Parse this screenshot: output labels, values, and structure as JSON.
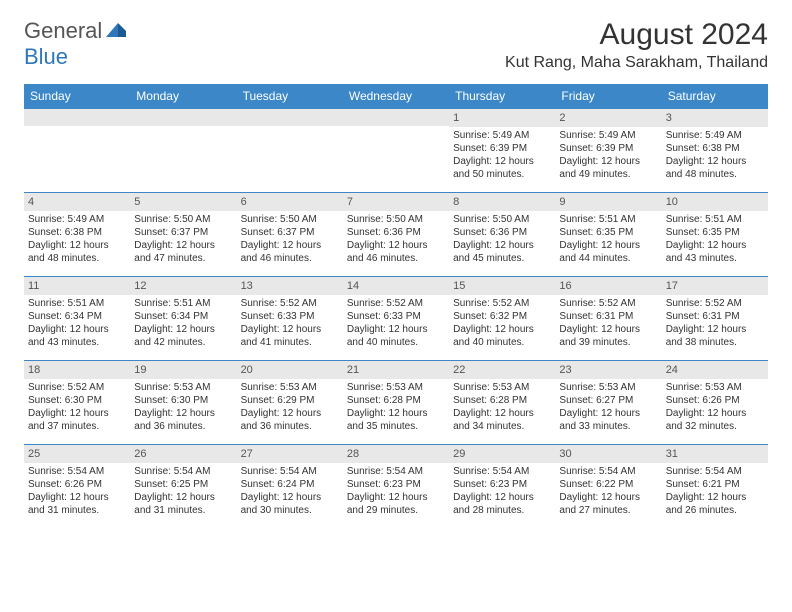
{
  "logo": {
    "part1": "General",
    "part2": "Blue"
  },
  "title": "August 2024",
  "location": "Kut Rang, Maha Sarakham, Thailand",
  "colors": {
    "header_bg": "#3b87c8",
    "header_text": "#ffffff",
    "daybar_bg": "#e8e8e8",
    "border": "#3b87c8",
    "logo_gray": "#555555",
    "logo_blue": "#2f77bb"
  },
  "weekdays": [
    "Sunday",
    "Monday",
    "Tuesday",
    "Wednesday",
    "Thursday",
    "Friday",
    "Saturday"
  ],
  "weeks": [
    [
      null,
      null,
      null,
      null,
      {
        "n": "1",
        "sunrise": "5:49 AM",
        "sunset": "6:39 PM",
        "dl1": "Daylight: 12 hours",
        "dl2": "and 50 minutes."
      },
      {
        "n": "2",
        "sunrise": "5:49 AM",
        "sunset": "6:39 PM",
        "dl1": "Daylight: 12 hours",
        "dl2": "and 49 minutes."
      },
      {
        "n": "3",
        "sunrise": "5:49 AM",
        "sunset": "6:38 PM",
        "dl1": "Daylight: 12 hours",
        "dl2": "and 48 minutes."
      }
    ],
    [
      {
        "n": "4",
        "sunrise": "5:49 AM",
        "sunset": "6:38 PM",
        "dl1": "Daylight: 12 hours",
        "dl2": "and 48 minutes."
      },
      {
        "n": "5",
        "sunrise": "5:50 AM",
        "sunset": "6:37 PM",
        "dl1": "Daylight: 12 hours",
        "dl2": "and 47 minutes."
      },
      {
        "n": "6",
        "sunrise": "5:50 AM",
        "sunset": "6:37 PM",
        "dl1": "Daylight: 12 hours",
        "dl2": "and 46 minutes."
      },
      {
        "n": "7",
        "sunrise": "5:50 AM",
        "sunset": "6:36 PM",
        "dl1": "Daylight: 12 hours",
        "dl2": "and 46 minutes."
      },
      {
        "n": "8",
        "sunrise": "5:50 AM",
        "sunset": "6:36 PM",
        "dl1": "Daylight: 12 hours",
        "dl2": "and 45 minutes."
      },
      {
        "n": "9",
        "sunrise": "5:51 AM",
        "sunset": "6:35 PM",
        "dl1": "Daylight: 12 hours",
        "dl2": "and 44 minutes."
      },
      {
        "n": "10",
        "sunrise": "5:51 AM",
        "sunset": "6:35 PM",
        "dl1": "Daylight: 12 hours",
        "dl2": "and 43 minutes."
      }
    ],
    [
      {
        "n": "11",
        "sunrise": "5:51 AM",
        "sunset": "6:34 PM",
        "dl1": "Daylight: 12 hours",
        "dl2": "and 43 minutes."
      },
      {
        "n": "12",
        "sunrise": "5:51 AM",
        "sunset": "6:34 PM",
        "dl1": "Daylight: 12 hours",
        "dl2": "and 42 minutes."
      },
      {
        "n": "13",
        "sunrise": "5:52 AM",
        "sunset": "6:33 PM",
        "dl1": "Daylight: 12 hours",
        "dl2": "and 41 minutes."
      },
      {
        "n": "14",
        "sunrise": "5:52 AM",
        "sunset": "6:33 PM",
        "dl1": "Daylight: 12 hours",
        "dl2": "and 40 minutes."
      },
      {
        "n": "15",
        "sunrise": "5:52 AM",
        "sunset": "6:32 PM",
        "dl1": "Daylight: 12 hours",
        "dl2": "and 40 minutes."
      },
      {
        "n": "16",
        "sunrise": "5:52 AM",
        "sunset": "6:31 PM",
        "dl1": "Daylight: 12 hours",
        "dl2": "and 39 minutes."
      },
      {
        "n": "17",
        "sunrise": "5:52 AM",
        "sunset": "6:31 PM",
        "dl1": "Daylight: 12 hours",
        "dl2": "and 38 minutes."
      }
    ],
    [
      {
        "n": "18",
        "sunrise": "5:52 AM",
        "sunset": "6:30 PM",
        "dl1": "Daylight: 12 hours",
        "dl2": "and 37 minutes."
      },
      {
        "n": "19",
        "sunrise": "5:53 AM",
        "sunset": "6:30 PM",
        "dl1": "Daylight: 12 hours",
        "dl2": "and 36 minutes."
      },
      {
        "n": "20",
        "sunrise": "5:53 AM",
        "sunset": "6:29 PM",
        "dl1": "Daylight: 12 hours",
        "dl2": "and 36 minutes."
      },
      {
        "n": "21",
        "sunrise": "5:53 AM",
        "sunset": "6:28 PM",
        "dl1": "Daylight: 12 hours",
        "dl2": "and 35 minutes."
      },
      {
        "n": "22",
        "sunrise": "5:53 AM",
        "sunset": "6:28 PM",
        "dl1": "Daylight: 12 hours",
        "dl2": "and 34 minutes."
      },
      {
        "n": "23",
        "sunrise": "5:53 AM",
        "sunset": "6:27 PM",
        "dl1": "Daylight: 12 hours",
        "dl2": "and 33 minutes."
      },
      {
        "n": "24",
        "sunrise": "5:53 AM",
        "sunset": "6:26 PM",
        "dl1": "Daylight: 12 hours",
        "dl2": "and 32 minutes."
      }
    ],
    [
      {
        "n": "25",
        "sunrise": "5:54 AM",
        "sunset": "6:26 PM",
        "dl1": "Daylight: 12 hours",
        "dl2": "and 31 minutes."
      },
      {
        "n": "26",
        "sunrise": "5:54 AM",
        "sunset": "6:25 PM",
        "dl1": "Daylight: 12 hours",
        "dl2": "and 31 minutes."
      },
      {
        "n": "27",
        "sunrise": "5:54 AM",
        "sunset": "6:24 PM",
        "dl1": "Daylight: 12 hours",
        "dl2": "and 30 minutes."
      },
      {
        "n": "28",
        "sunrise": "5:54 AM",
        "sunset": "6:23 PM",
        "dl1": "Daylight: 12 hours",
        "dl2": "and 29 minutes."
      },
      {
        "n": "29",
        "sunrise": "5:54 AM",
        "sunset": "6:23 PM",
        "dl1": "Daylight: 12 hours",
        "dl2": "and 28 minutes."
      },
      {
        "n": "30",
        "sunrise": "5:54 AM",
        "sunset": "6:22 PM",
        "dl1": "Daylight: 12 hours",
        "dl2": "and 27 minutes."
      },
      {
        "n": "31",
        "sunrise": "5:54 AM",
        "sunset": "6:21 PM",
        "dl1": "Daylight: 12 hours",
        "dl2": "and 26 minutes."
      }
    ]
  ]
}
